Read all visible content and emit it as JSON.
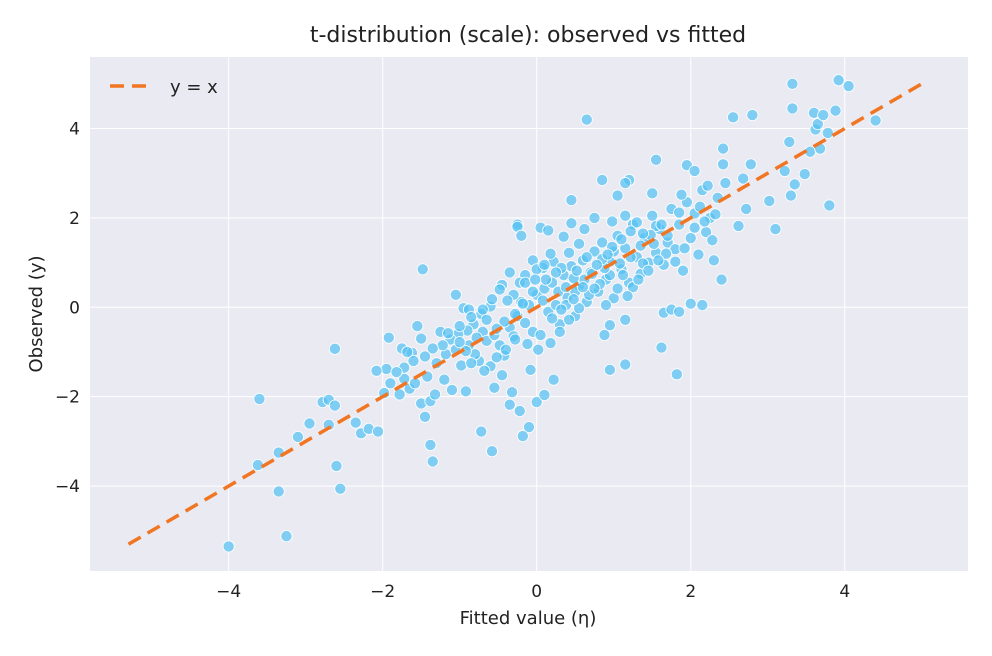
{
  "chart_data": {
    "type": "scatter",
    "title": "t-distribution (scale): observed vs fitted",
    "xlabel": "Fitted value (η)",
    "ylabel": "Observed (y)",
    "xlim": [
      -5.8,
      5.6
    ],
    "ylim": [
      -5.9,
      5.6
    ],
    "xticks": [
      -4,
      -2,
      0,
      2,
      4
    ],
    "yticks": [
      -4,
      -2,
      0,
      2,
      4
    ],
    "grid": true,
    "legend_position": "top-left",
    "background_color": "#eaeaf2",
    "point_color": "#56c2f2",
    "line_color": "#f07623",
    "reference_line": {
      "name": "y = x",
      "style": "dashed",
      "x": [
        -5.3,
        5.05
      ],
      "y": [
        -5.3,
        5.05
      ]
    },
    "series": [
      {
        "points": [
          [
            -4.0,
            -5.35
          ],
          [
            -3.25,
            -5.12
          ],
          [
            -3.35,
            -4.12
          ],
          [
            -2.55,
            -4.06
          ],
          [
            -3.62,
            -3.53
          ],
          [
            -2.6,
            -3.55
          ],
          [
            -3.35,
            -3.25
          ],
          [
            -3.6,
            -2.05
          ],
          [
            -3.1,
            -2.9
          ],
          [
            -2.95,
            -2.6
          ],
          [
            -2.7,
            -2.63
          ],
          [
            -2.78,
            -2.12
          ],
          [
            -2.7,
            -2.07
          ],
          [
            -2.62,
            -2.2
          ],
          [
            -2.35,
            -2.58
          ],
          [
            -2.28,
            -2.82
          ],
          [
            -2.18,
            -2.72
          ],
          [
            -2.06,
            -2.78
          ],
          [
            -2.62,
            -0.93
          ],
          [
            -1.92,
            -0.68
          ],
          [
            -1.75,
            -0.92
          ],
          [
            -1.62,
            -1.02
          ],
          [
            -1.55,
            -0.42
          ],
          [
            -1.48,
            0.85
          ],
          [
            -1.05,
            0.28
          ],
          [
            -0.95,
            -0.02
          ],
          [
            -0.88,
            -0.05
          ],
          [
            -1.65,
            -1.82
          ],
          [
            -1.78,
            -1.95
          ],
          [
            -1.9,
            -1.7
          ],
          [
            -1.45,
            -2.45
          ],
          [
            -1.5,
            -2.15
          ],
          [
            -1.38,
            -2.1
          ],
          [
            -1.32,
            -1.95
          ],
          [
            -1.2,
            -1.62
          ],
          [
            -1.1,
            -1.85
          ],
          [
            -0.92,
            -1.88
          ],
          [
            -0.75,
            -1.2
          ],
          [
            -0.6,
            -1.32
          ],
          [
            -0.55,
            -1.8
          ],
          [
            -0.45,
            -1.52
          ],
          [
            -0.32,
            -1.9
          ],
          [
            -0.22,
            -2.32
          ],
          [
            -0.35,
            -2.18
          ],
          [
            -0.1,
            -2.68
          ],
          [
            -0.18,
            -2.88
          ],
          [
            -0.72,
            -2.78
          ],
          [
            -0.58,
            -3.22
          ],
          [
            -1.38,
            -3.08
          ],
          [
            -1.35,
            -3.45
          ],
          [
            0.0,
            -2.12
          ],
          [
            0.1,
            -1.96
          ],
          [
            0.22,
            -1.62
          ],
          [
            -0.08,
            -1.4
          ],
          [
            -1.95,
            -1.38
          ],
          [
            -2.08,
            -1.42
          ],
          [
            -1.98,
            -1.92
          ],
          [
            -1.72,
            -1.6
          ],
          [
            -1.58,
            -1.7
          ],
          [
            -1.42,
            -1.55
          ],
          [
            -1.3,
            -1.25
          ],
          [
            -1.18,
            -1.05
          ],
          [
            -1.05,
            -0.95
          ],
          [
            -0.98,
            -1.3
          ],
          [
            -0.88,
            -0.85
          ],
          [
            -0.8,
            -1.05
          ],
          [
            -0.7,
            -0.55
          ],
          [
            -0.65,
            -0.75
          ],
          [
            -0.55,
            -0.62
          ],
          [
            -0.48,
            -0.85
          ],
          [
            -0.42,
            -1.08
          ],
          [
            -0.35,
            -0.45
          ],
          [
            -0.3,
            -0.65
          ],
          [
            -0.25,
            -0.2
          ],
          [
            -0.2,
            0.12
          ],
          [
            -0.15,
            -0.35
          ],
          [
            -0.1,
            0.05
          ],
          [
            -0.05,
            -0.55
          ],
          [
            0.0,
            0.28
          ],
          [
            0.05,
            -0.62
          ],
          [
            0.1,
            0.42
          ],
          [
            0.15,
            -0.1
          ],
          [
            0.2,
            0.55
          ],
          [
            0.25,
            0.05
          ],
          [
            0.3,
            -0.38
          ],
          [
            0.35,
            0.72
          ],
          [
            0.4,
            0.22
          ],
          [
            0.45,
            0.92
          ],
          [
            0.5,
            -0.2
          ],
          [
            0.55,
            0.48
          ],
          [
            0.6,
            1.05
          ],
          [
            0.65,
            0.12
          ],
          [
            0.7,
            0.78
          ],
          [
            0.75,
            1.25
          ],
          [
            0.8,
            0.35
          ],
          [
            0.85,
            1.45
          ],
          [
            0.9,
            0.62
          ],
          [
            0.95,
            1.02
          ],
          [
            1.0,
            0.2
          ],
          [
            1.05,
            1.6
          ],
          [
            1.1,
            0.85
          ],
          [
            1.15,
            1.32
          ],
          [
            1.2,
            0.55
          ],
          [
            1.25,
            1.85
          ],
          [
            1.3,
            1.12
          ],
          [
            1.35,
            0.75
          ],
          [
            1.4,
            1.55
          ],
          [
            1.45,
            1.0
          ],
          [
            1.5,
            2.05
          ],
          [
            1.55,
            1.22
          ],
          [
            1.6,
            1.75
          ],
          [
            1.65,
            0.95
          ],
          [
            1.7,
            1.45
          ],
          [
            1.75,
            2.2
          ],
          [
            1.8,
            1.3
          ],
          [
            1.85,
            1.85
          ],
          [
            1.9,
            0.82
          ],
          [
            1.95,
            2.35
          ],
          [
            2.0,
            1.55
          ],
          [
            2.05,
            2.1
          ],
          [
            2.1,
            1.18
          ],
          [
            2.15,
            2.62
          ],
          [
            2.2,
            1.68
          ],
          [
            2.25,
            2.0
          ],
          [
            2.3,
            1.05
          ],
          [
            2.35,
            2.45
          ],
          [
            2.4,
            0.62
          ],
          [
            2.45,
            2.78
          ],
          [
            2.55,
            4.25
          ],
          [
            2.62,
            1.82
          ],
          [
            2.68,
            2.88
          ],
          [
            2.72,
            2.2
          ],
          [
            2.78,
            3.2
          ],
          [
            2.8,
            4.3
          ],
          [
            3.02,
            2.38
          ],
          [
            3.1,
            1.75
          ],
          [
            3.22,
            3.05
          ],
          [
            3.28,
            3.7
          ],
          [
            3.3,
            2.5
          ],
          [
            3.32,
            4.45
          ],
          [
            3.35,
            2.75
          ],
          [
            3.48,
            2.98
          ],
          [
            3.55,
            3.48
          ],
          [
            3.6,
            4.35
          ],
          [
            3.62,
            3.98
          ],
          [
            3.65,
            4.1
          ],
          [
            3.68,
            3.55
          ],
          [
            3.72,
            4.3
          ],
          [
            3.78,
            3.9
          ],
          [
            3.8,
            2.28
          ],
          [
            3.88,
            4.4
          ],
          [
            3.92,
            5.08
          ],
          [
            4.05,
            4.95
          ],
          [
            4.4,
            4.18
          ],
          [
            3.32,
            5.0
          ],
          [
            0.65,
            4.2
          ],
          [
            1.55,
            3.3
          ],
          [
            1.95,
            3.18
          ],
          [
            2.05,
            3.05
          ],
          [
            2.42,
            3.55
          ],
          [
            2.42,
            3.2
          ],
          [
            1.2,
            2.85
          ],
          [
            1.15,
            2.78
          ],
          [
            0.85,
            2.85
          ],
          [
            1.05,
            2.5
          ],
          [
            1.5,
            2.55
          ],
          [
            1.88,
            2.52
          ],
          [
            2.22,
            2.72
          ],
          [
            0.45,
            2.4
          ],
          [
            -0.25,
            1.85
          ],
          [
            -0.25,
            1.8
          ],
          [
            -0.2,
            1.6
          ],
          [
            0.05,
            1.78
          ],
          [
            0.15,
            1.72
          ],
          [
            0.35,
            1.58
          ],
          [
            0.45,
            1.88
          ],
          [
            0.62,
            1.75
          ],
          [
            0.75,
            2.0
          ],
          [
            0.98,
            1.92
          ],
          [
            1.15,
            2.05
          ],
          [
            1.3,
            1.9
          ],
          [
            1.55,
            1.82
          ],
          [
            1.7,
            1.6
          ],
          [
            1.85,
            2.12
          ],
          [
            2.12,
            2.25
          ],
          [
            2.28,
            1.5
          ],
          [
            0.55,
            1.42
          ],
          [
            0.42,
            1.22
          ],
          [
            0.22,
            1.02
          ],
          [
            0.08,
            0.88
          ],
          [
            -0.05,
            1.05
          ],
          [
            -0.15,
            0.72
          ],
          [
            -0.22,
            0.55
          ],
          [
            -0.3,
            0.28
          ],
          [
            -0.38,
            0.15
          ],
          [
            -0.45,
            0.5
          ],
          [
            -0.6,
            0.02
          ],
          [
            -0.72,
            -0.15
          ],
          [
            -0.82,
            -0.38
          ],
          [
            -0.9,
            -0.52
          ],
          [
            -1.02,
            -0.6
          ],
          [
            -1.12,
            -0.72
          ],
          [
            -1.22,
            -0.85
          ],
          [
            -1.35,
            -0.92
          ],
          [
            -1.45,
            -1.1
          ],
          [
            -1.6,
            -1.2
          ],
          [
            -1.72,
            -1.35
          ],
          [
            -1.82,
            -1.45
          ],
          [
            -1.68,
            -1.0
          ],
          [
            -1.5,
            -0.7
          ],
          [
            -1.25,
            -0.55
          ],
          [
            -1.0,
            -0.78
          ],
          [
            -0.85,
            -1.25
          ],
          [
            -0.68,
            -1.42
          ],
          [
            -0.52,
            -1.12
          ],
          [
            -0.4,
            -0.95
          ],
          [
            -0.28,
            -0.72
          ],
          [
            -0.12,
            -0.82
          ],
          [
            0.02,
            -0.95
          ],
          [
            0.18,
            -0.8
          ],
          [
            0.3,
            -0.55
          ],
          [
            0.42,
            -0.28
          ],
          [
            0.55,
            -0.02
          ],
          [
            0.68,
            0.28
          ],
          [
            0.82,
            0.52
          ],
          [
            0.95,
            0.72
          ],
          [
            1.08,
            0.98
          ],
          [
            1.22,
            1.12
          ],
          [
            1.35,
            1.38
          ],
          [
            1.48,
            1.62
          ],
          [
            1.62,
            1.85
          ],
          [
            0.9,
            0.05
          ],
          [
            0.95,
            -0.4
          ],
          [
            0.88,
            -0.62
          ],
          [
            0.95,
            -1.4
          ],
          [
            1.15,
            -1.28
          ],
          [
            1.15,
            -0.28
          ],
          [
            1.65,
            -0.12
          ],
          [
            1.75,
            -0.05
          ],
          [
            1.85,
            -0.1
          ],
          [
            2.0,
            0.08
          ],
          [
            2.15,
            0.05
          ],
          [
            1.62,
            -0.9
          ],
          [
            1.82,
            -1.5
          ],
          [
            -0.15,
            0.55
          ],
          [
            0.0,
            0.85
          ],
          [
            0.12,
            0.62
          ],
          [
            0.28,
            0.35
          ],
          [
            0.38,
            0.05
          ],
          [
            0.5,
            0.35
          ],
          [
            0.62,
            0.62
          ],
          [
            0.75,
            0.42
          ],
          [
            0.88,
            0.88
          ],
          [
            1.0,
            1.25
          ],
          [
            1.12,
            0.72
          ],
          [
            1.25,
            0.45
          ],
          [
            1.38,
            0.98
          ],
          [
            0.18,
            1.2
          ],
          [
            0.32,
            0.88
          ],
          [
            0.48,
            0.65
          ],
          [
            -0.05,
            0.35
          ],
          [
            -0.18,
            0.08
          ],
          [
            -0.28,
            -0.15
          ],
          [
            -0.42,
            -0.32
          ],
          [
            -0.52,
            -0.48
          ],
          [
            -0.65,
            -0.28
          ],
          [
            -0.78,
            -0.68
          ],
          [
            -0.92,
            -0.98
          ],
          [
            0.08,
            0.15
          ],
          [
            0.2,
            -0.25
          ],
          [
            0.32,
            -0.05
          ],
          [
            0.48,
            0.18
          ],
          [
            0.6,
            0.45
          ],
          [
            0.72,
            0.75
          ],
          [
            0.85,
            1.08
          ],
          [
            0.98,
            1.35
          ],
          [
            1.1,
            1.52
          ],
          [
            1.22,
            1.7
          ],
          [
            1.38,
            1.65
          ],
          [
            1.52,
            1.42
          ],
          [
            1.68,
            1.2
          ],
          [
            1.8,
            1.02
          ],
          [
            1.92,
            1.32
          ],
          [
            2.05,
            1.78
          ],
          [
            2.18,
            1.92
          ],
          [
            2.32,
            2.08
          ],
          [
            -0.02,
            0.62
          ],
          [
            0.1,
            0.95
          ],
          [
            0.25,
            0.78
          ],
          [
            0.38,
            0.45
          ],
          [
            0.52,
            0.82
          ],
          [
            0.65,
            1.12
          ],
          [
            0.78,
            0.95
          ],
          [
            0.92,
            1.18
          ],
          [
            1.05,
            0.42
          ],
          [
            1.18,
            0.25
          ],
          [
            1.32,
            0.62
          ],
          [
            1.45,
            0.82
          ],
          [
            1.58,
            1.05
          ],
          [
            -0.35,
            0.78
          ],
          [
            -0.48,
            0.4
          ],
          [
            -0.58,
            0.18
          ],
          [
            -0.7,
            -0.05
          ],
          [
            -0.85,
            -0.22
          ],
          [
            -1.0,
            -0.42
          ],
          [
            -1.15,
            -0.58
          ]
        ]
      }
    ]
  }
}
